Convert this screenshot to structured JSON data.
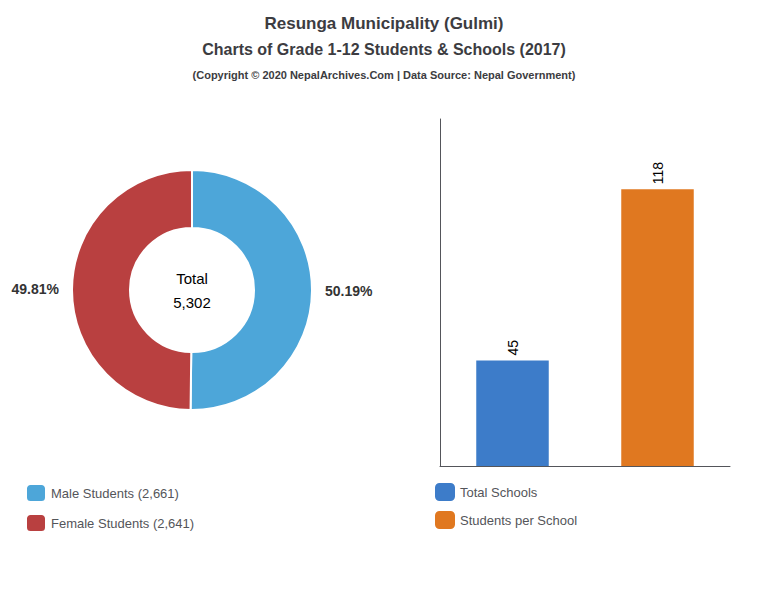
{
  "chart_data": [
    {
      "type": "pie",
      "title": "Resunga Municipality (Gulmi)\nCharts of Grade 1-12 Students & Schools (2017)",
      "subtitle": "(Copyright © 2020 NepalArchives.Com | Data Source: Nepal Government)",
      "categories": [
        "Male Students (2,661)",
        "Female Students (2,641)"
      ],
      "values": [
        50.19,
        49.81
      ],
      "value_labels": [
        "50.19%",
        "49.81%"
      ],
      "colors": [
        "#4da6d9",
        "#b94040"
      ],
      "data_labels": true,
      "annotations": [
        "Total",
        "5,302"
      ],
      "legend": "lower left"
    },
    {
      "type": "bar",
      "categories": [
        "Total Schools",
        "Students per School"
      ],
      "values": [
        45,
        118
      ],
      "colors": [
        "#3d7cc9",
        "#e07820"
      ],
      "ylim": [
        0,
        148
      ],
      "yticks": [],
      "tick_labels": false,
      "data_labels": true,
      "legend": "lower left"
    }
  ]
}
